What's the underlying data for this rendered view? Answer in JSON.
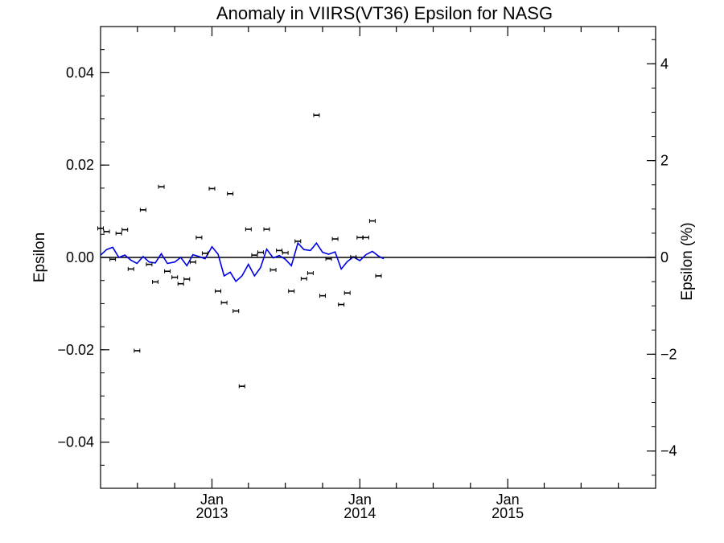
{
  "chart_data": {
    "type": "scatter",
    "title": "Anomaly in VIIRS(VT36) Epsilon for NASG",
    "ylabel": "Epsilon",
    "y2label": "Epsilon (%)",
    "xlim": [
      "2012-04-01",
      "2016-01-01"
    ],
    "ylim": [
      -0.05,
      0.05
    ],
    "y2lim": [
      -4.77,
      4.77
    ],
    "yticks": [
      {
        "value": -0.04,
        "label": "−0.04"
      },
      {
        "value": -0.02,
        "label": "−0.02"
      },
      {
        "value": 0.0,
        "label": "0.00"
      },
      {
        "value": 0.02,
        "label": "0.02"
      },
      {
        "value": 0.04,
        "label": "0.04"
      }
    ],
    "y2ticks": [
      {
        "value": -4,
        "label": "−4"
      },
      {
        "value": -2,
        "label": "−2"
      },
      {
        "value": 0,
        "label": "0"
      },
      {
        "value": 2,
        "label": "2"
      },
      {
        "value": 4,
        "label": "4"
      }
    ],
    "xticks": [
      {
        "value": "2013-01-01",
        "label": "Jan",
        "year": "2013"
      },
      {
        "value": "2014-01-01",
        "label": "Jan",
        "year": "2014"
      },
      {
        "value": "2015-01-01",
        "label": "Jan",
        "year": "2015"
      }
    ],
    "zero_line": 0.0,
    "grid": false,
    "colors": {
      "points": "#000000",
      "line": "#0000e6",
      "axes": "#000000"
    },
    "series": [
      {
        "kind": "points_with_errorbars",
        "points": [
          {
            "x": "2012-04-01",
            "y": 0.0063
          },
          {
            "x": "2012-04-16",
            "y": 0.0056
          },
          {
            "x": "2012-05-01",
            "y": -0.0004
          },
          {
            "x": "2012-05-16",
            "y": 0.0052
          },
          {
            "x": "2012-05-31",
            "y": 0.006
          },
          {
            "x": "2012-06-15",
            "y": -0.0025
          },
          {
            "x": "2012-06-30",
            "y": -0.0202
          },
          {
            "x": "2012-07-15",
            "y": 0.0103
          },
          {
            "x": "2012-07-30",
            "y": -0.0015
          },
          {
            "x": "2012-08-14",
            "y": -0.0053
          },
          {
            "x": "2012-08-29",
            "y": 0.0153
          },
          {
            "x": "2012-09-13",
            "y": -0.003
          },
          {
            "x": "2012-10-01",
            "y": -0.0043
          },
          {
            "x": "2012-10-16",
            "y": -0.0057
          },
          {
            "x": "2012-10-31",
            "y": -0.0047
          },
          {
            "x": "2012-11-15",
            "y": -0.001
          },
          {
            "x": "2012-11-30",
            "y": 0.0043
          },
          {
            "x": "2012-12-15",
            "y": 0.0009
          },
          {
            "x": "2013-01-01",
            "y": 0.0149
          },
          {
            "x": "2013-01-16",
            "y": -0.0073
          },
          {
            "x": "2013-01-31",
            "y": -0.0098
          },
          {
            "x": "2013-02-15",
            "y": 0.0138
          },
          {
            "x": "2013-03-01",
            "y": -0.0116
          },
          {
            "x": "2013-03-16",
            "y": -0.0279
          },
          {
            "x": "2013-04-01",
            "y": 0.0061
          },
          {
            "x": "2013-04-16",
            "y": 0.0005
          },
          {
            "x": "2013-05-01",
            "y": 0.0011
          },
          {
            "x": "2013-05-16",
            "y": 0.0061
          },
          {
            "x": "2013-06-01",
            "y": -0.0027
          },
          {
            "x": "2013-06-16",
            "y": 0.0015
          },
          {
            "x": "2013-07-01",
            "y": 0.001
          },
          {
            "x": "2013-07-16",
            "y": -0.0073
          },
          {
            "x": "2013-08-01",
            "y": 0.0035
          },
          {
            "x": "2013-08-16",
            "y": -0.0046
          },
          {
            "x": "2013-09-01",
            "y": -0.0034
          },
          {
            "x": "2013-09-16",
            "y": 0.0308
          },
          {
            "x": "2013-10-01",
            "y": -0.0083
          },
          {
            "x": "2013-10-16",
            "y": -0.0003
          },
          {
            "x": "2013-11-01",
            "y": 0.004
          },
          {
            "x": "2013-11-16",
            "y": -0.0102
          },
          {
            "x": "2013-12-01",
            "y": -0.0077
          },
          {
            "x": "2013-12-16",
            "y": 0.0001
          },
          {
            "x": "2014-01-01",
            "y": 0.0043
          },
          {
            "x": "2014-01-16",
            "y": 0.0043
          },
          {
            "x": "2014-02-01",
            "y": 0.0079
          },
          {
            "x": "2014-02-16",
            "y": -0.004
          }
        ]
      },
      {
        "kind": "line",
        "points": [
          {
            "x": "2012-04-01",
            "y": 0.0005
          },
          {
            "x": "2012-04-16",
            "y": 0.0017
          },
          {
            "x": "2012-05-01",
            "y": 0.0022
          },
          {
            "x": "2012-05-16",
            "y": 0.0
          },
          {
            "x": "2012-05-31",
            "y": 0.0005
          },
          {
            "x": "2012-06-15",
            "y": -0.0006
          },
          {
            "x": "2012-06-30",
            "y": -0.0013
          },
          {
            "x": "2012-07-15",
            "y": 0.0002
          },
          {
            "x": "2012-07-30",
            "y": -0.001
          },
          {
            "x": "2012-08-14",
            "y": -0.0012
          },
          {
            "x": "2012-08-29",
            "y": 0.0008
          },
          {
            "x": "2012-09-13",
            "y": -0.0013
          },
          {
            "x": "2012-10-01",
            "y": -0.001
          },
          {
            "x": "2012-10-16",
            "y": 0.0
          },
          {
            "x": "2012-10-31",
            "y": -0.0018
          },
          {
            "x": "2012-11-15",
            "y": 0.0006
          },
          {
            "x": "2012-11-30",
            "y": 0.0002
          },
          {
            "x": "2012-12-15",
            "y": -0.0003
          },
          {
            "x": "2013-01-01",
            "y": 0.0023
          },
          {
            "x": "2013-01-16",
            "y": 0.0007
          },
          {
            "x": "2013-01-31",
            "y": -0.004
          },
          {
            "x": "2013-02-15",
            "y": -0.0032
          },
          {
            "x": "2013-03-01",
            "y": -0.0052
          },
          {
            "x": "2013-03-16",
            "y": -0.004
          },
          {
            "x": "2013-04-01",
            "y": -0.0015
          },
          {
            "x": "2013-04-16",
            "y": -0.004
          },
          {
            "x": "2013-05-01",
            "y": -0.0022
          },
          {
            "x": "2013-05-16",
            "y": 0.0018
          },
          {
            "x": "2013-06-01",
            "y": -0.0001
          },
          {
            "x": "2013-06-16",
            "y": 0.0004
          },
          {
            "x": "2013-07-01",
            "y": -0.0004
          },
          {
            "x": "2013-07-16",
            "y": -0.0018
          },
          {
            "x": "2013-08-01",
            "y": 0.0031
          },
          {
            "x": "2013-08-16",
            "y": 0.0017
          },
          {
            "x": "2013-09-01",
            "y": 0.0015
          },
          {
            "x": "2013-09-16",
            "y": 0.0031
          },
          {
            "x": "2013-10-01",
            "y": 0.0011
          },
          {
            "x": "2013-10-16",
            "y": 0.0007
          },
          {
            "x": "2013-11-01",
            "y": 0.0012
          },
          {
            "x": "2013-11-16",
            "y": -0.0025
          },
          {
            "x": "2013-12-01",
            "y": -0.0009
          },
          {
            "x": "2013-12-16",
            "y": 0.0001
          },
          {
            "x": "2014-01-01",
            "y": -0.0007
          },
          {
            "x": "2014-01-16",
            "y": 0.0006
          },
          {
            "x": "2014-02-01",
            "y": 0.0013
          },
          {
            "x": "2014-02-16",
            "y": 0.0003
          },
          {
            "x": "2014-03-01",
            "y": -0.0003
          }
        ]
      }
    ]
  }
}
